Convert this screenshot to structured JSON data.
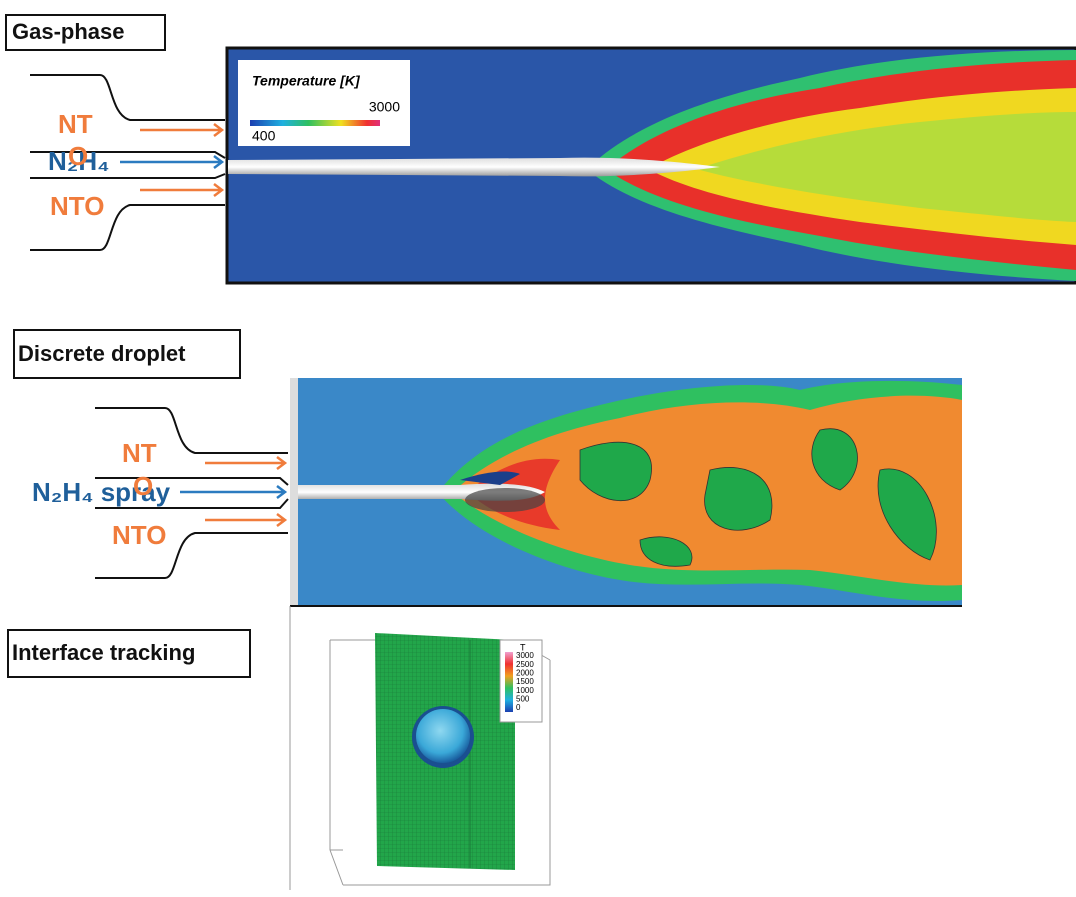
{
  "panels": [
    {
      "label": "Gas-phase",
      "inlet_top": "NT",
      "inlet_mid": "N₂H₄",
      "overlap": "O",
      "inlet_bottom": "NTO",
      "legend": {
        "title": "Temperature [K]",
        "min": 400,
        "max": 3000
      }
    },
    {
      "label": "Discrete droplet",
      "inlet_top": "NT",
      "inlet_mid": "N₂H₄ spray",
      "overlap": "O",
      "inlet_bottom": "NTO"
    },
    {
      "label": "Interface tracking",
      "colorbar": {
        "title": "T",
        "ticks": [
          3000,
          2500,
          2000,
          1500,
          1000,
          500,
          0
        ]
      }
    }
  ]
}
